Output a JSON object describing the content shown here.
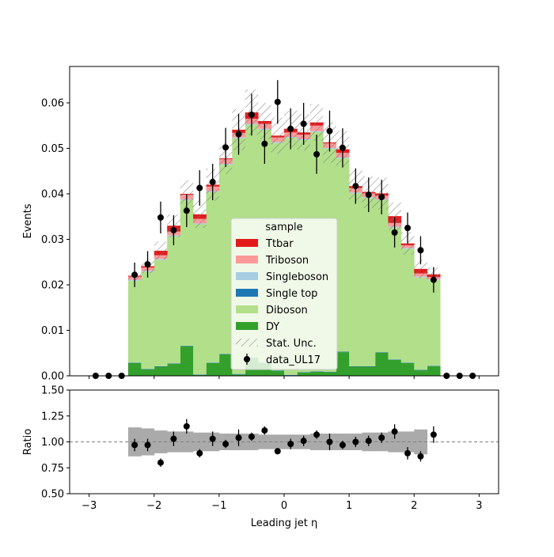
{
  "chart_data": [
    {
      "type": "bar",
      "stacked": true,
      "ylabel": "Events",
      "ylim": [
        0,
        0.068
      ],
      "xlim": [
        -3.3,
        3.3
      ],
      "y_ticks": [
        0.0,
        0.01,
        0.02,
        0.03,
        0.04,
        0.05,
        0.06
      ],
      "y_tick_labels": [
        "0.00",
        "0.01",
        "0.02",
        "0.03",
        "0.04",
        "0.05",
        "0.06"
      ],
      "bin_edges": [
        -3.0,
        -2.8,
        -2.6,
        -2.4,
        -2.2,
        -2.0,
        -1.8,
        -1.6,
        -1.4,
        -1.2,
        -1.0,
        -0.8,
        -0.6,
        -0.4,
        -0.2,
        0.0,
        0.2,
        0.4,
        0.6,
        0.8,
        1.0,
        1.2,
        1.4,
        1.6,
        1.8,
        2.0,
        2.2,
        2.4,
        2.6,
        2.8,
        3.0
      ],
      "series": [
        {
          "name": "DY",
          "color": "#33a02c",
          "values": [
            0,
            0,
            0,
            0.0028,
            0.0014,
            0.002,
            0.0026,
            0.0065,
            0.0002,
            0.0028,
            0.0047,
            0.0003,
            0.0039,
            0.0028,
            0.0011,
            0.0001,
            0.0007,
            0.0009,
            0.0008,
            0.0052,
            0.002,
            0.002,
            0.0051,
            0.0035,
            0.0028,
            0.0012,
            0.0021,
            0,
            0,
            0
          ]
        },
        {
          "name": "Single top",
          "color": "#1f78b4",
          "values": [
            0,
            0,
            0,
            0.0001,
            0.0001,
            0.0001,
            0.0001,
            0.0001,
            0.0001,
            0.0001,
            0.0001,
            0.0001,
            0.0001,
            0.0001,
            0.0001,
            0.0001,
            0.0001,
            0.0001,
            0.0001,
            0.0001,
            0.0001,
            0.0001,
            0.0001,
            0.0001,
            0.0001,
            0.0001,
            0.0001,
            0,
            0,
            0
          ]
        },
        {
          "name": "Diboson",
          "color": "#b2df8a",
          "values": [
            0,
            0,
            0,
            0.018,
            0.0214,
            0.0234,
            0.028,
            0.032,
            0.033,
            0.0375,
            0.0416,
            0.0518,
            0.0512,
            0.0512,
            0.05,
            0.0521,
            0.051,
            0.0526,
            0.049,
            0.0425,
            0.038,
            0.037,
            0.0334,
            0.029,
            0.025,
            0.0203,
            0.0188,
            0,
            0,
            0
          ]
        },
        {
          "name": "Singleboson",
          "color": "#a6cee3",
          "values": [
            0,
            0,
            0,
            0.0002,
            0.0002,
            0.0002,
            0.0002,
            0.0002,
            0.0002,
            0.0002,
            0.0002,
            0.0002,
            0.0002,
            0.0002,
            0.0002,
            0.0002,
            0.0002,
            0.0002,
            0.0002,
            0.0002,
            0.0002,
            0.0002,
            0.0002,
            0.0002,
            0.0002,
            0.0002,
            0.0002,
            0,
            0,
            0
          ]
        },
        {
          "name": "Triboson",
          "color": "#fb9a99",
          "values": [
            0,
            0,
            0,
            0.0007,
            0.0007,
            0.0008,
            0.0008,
            0.001,
            0.001,
            0.001,
            0.001,
            0.001,
            0.0011,
            0.0011,
            0.001,
            0.001,
            0.001,
            0.0012,
            0.001,
            0.001,
            0.001,
            0.0008,
            0.0008,
            0.0008,
            0.0006,
            0.0007,
            0.0005,
            0,
            0,
            0
          ]
        },
        {
          "name": "Ttbar",
          "color": "#e31a1c",
          "values": [
            0,
            0,
            0,
            0.0002,
            0.0003,
            0.001,
            0.0013,
            0.0002,
            0.001,
            0.0004,
            0.0002,
            0.0007,
            0.0014,
            0.0006,
            0.0004,
            0.0008,
            0.0005,
            0.0007,
            0.0002,
            0.0008,
            0.0004,
            0.0003,
            0.0005,
            0.0015,
            0.0004,
            0.001,
            0.0006,
            0,
            0,
            0
          ]
        }
      ],
      "stat_unc": [
        0,
        0,
        0,
        0.001,
        0.0015,
        0.002,
        0.0025,
        0.003,
        0.003,
        0.0035,
        0.0035,
        0.0045,
        0.005,
        0.004,
        0.004,
        0.004,
        0.004,
        0.004,
        0.0045,
        0.004,
        0.0035,
        0.0035,
        0.0035,
        0.003,
        0.0025,
        0.002,
        0.0015,
        0,
        0,
        0
      ],
      "data_series": {
        "name": "data_UL17",
        "color": "#000000",
        "x": [
          -2.9,
          -2.7,
          -2.5,
          -2.3,
          -2.1,
          -1.9,
          -1.7,
          -1.5,
          -1.3,
          -1.1,
          -0.9,
          -0.7,
          -0.5,
          -0.3,
          -0.1,
          0.1,
          0.3,
          0.5,
          0.7,
          0.9,
          1.1,
          1.3,
          1.5,
          1.7,
          1.9,
          2.1,
          2.3,
          2.5,
          2.7,
          2.9
        ],
        "y": [
          0.0,
          0.0,
          0.0,
          0.0222,
          0.0245,
          0.0348,
          0.032,
          0.0363,
          0.0413,
          0.0426,
          0.0502,
          0.0531,
          0.0574,
          0.051,
          0.0602,
          0.0543,
          0.0554,
          0.0487,
          0.0538,
          0.0501,
          0.0417,
          0.0398,
          0.0393,
          0.0315,
          0.0325,
          0.0276,
          0.0211,
          0.0,
          0.0,
          0.0
        ],
        "yerr": [
          0,
          0,
          0,
          0.0027,
          0.0029,
          0.0035,
          0.0033,
          0.0036,
          0.0039,
          0.004,
          0.0043,
          0.0045,
          0.0046,
          0.0044,
          0.0048,
          0.0045,
          0.0046,
          0.0043,
          0.0045,
          0.0043,
          0.0039,
          0.0038,
          0.0038,
          0.0033,
          0.0034,
          0.0031,
          0.0028,
          0,
          0,
          0
        ]
      },
      "legend": {
        "title": "sample",
        "position": "center",
        "entries": [
          {
            "label": "Ttbar",
            "kind": "patch",
            "color": "#e31a1c"
          },
          {
            "label": "Triboson",
            "kind": "patch",
            "color": "#fb9a99"
          },
          {
            "label": "Singleboson",
            "kind": "patch",
            "color": "#a6cee3"
          },
          {
            "label": "Single top",
            "kind": "patch",
            "color": "#1f78b4"
          },
          {
            "label": "Diboson",
            "kind": "patch",
            "color": "#b2df8a"
          },
          {
            "label": "DY",
            "kind": "patch",
            "color": "#33a02c"
          },
          {
            "label": "Stat. Unc.",
            "kind": "hatch",
            "color": "#777777"
          },
          {
            "label": "data_UL17",
            "kind": "errorbar",
            "color": "#000000"
          }
        ]
      }
    },
    {
      "type": "scatter",
      "xlabel": "Leading jet  η",
      "ylabel": "Ratio",
      "ylim": [
        0.5,
        1.5
      ],
      "xlim": [
        -3.3,
        3.3
      ],
      "y_ticks": [
        0.5,
        0.75,
        1.0,
        1.25,
        1.5
      ],
      "y_tick_labels": [
        "0.50",
        "0.75",
        "1.00",
        "1.25",
        "1.50"
      ],
      "x_ticks": [
        -3,
        -2,
        -1,
        0,
        1,
        2,
        3
      ],
      "x_tick_labels": [
        "−3",
        "−2",
        "−1",
        "0",
        "1",
        "2",
        "3"
      ],
      "reference_line": 1.0,
      "unc_band": {
        "color": "#aaaaaa",
        "bin_edges": [
          -2.4,
          -2.2,
          -2.0,
          -1.8,
          -1.6,
          -1.4,
          -1.2,
          -1.0,
          -0.8,
          -0.6,
          -0.4,
          -0.2,
          0.0,
          0.2,
          0.4,
          0.6,
          0.8,
          1.0,
          1.2,
          1.4,
          1.6,
          1.8,
          2.0,
          2.2
        ],
        "low": [
          0.86,
          0.87,
          0.89,
          0.9,
          0.9,
          0.91,
          0.91,
          0.92,
          0.92,
          0.92,
          0.93,
          0.93,
          0.93,
          0.93,
          0.92,
          0.92,
          0.92,
          0.92,
          0.91,
          0.91,
          0.9,
          0.9,
          0.88
        ],
        "high": [
          1.14,
          1.13,
          1.11,
          1.1,
          1.1,
          1.09,
          1.09,
          1.08,
          1.08,
          1.08,
          1.07,
          1.07,
          1.07,
          1.07,
          1.08,
          1.08,
          1.08,
          1.08,
          1.09,
          1.09,
          1.1,
          1.1,
          1.12
        ]
      },
      "series": [
        {
          "name": "data_UL17",
          "color": "#000000",
          "x": [
            -2.3,
            -2.1,
            -1.9,
            -1.7,
            -1.5,
            -1.3,
            -1.1,
            -0.9,
            -0.7,
            -0.5,
            -0.3,
            -0.1,
            0.1,
            0.3,
            0.5,
            0.7,
            0.9,
            1.1,
            1.3,
            1.5,
            1.7,
            1.9,
            2.1,
            2.3
          ],
          "y": [
            0.97,
            0.97,
            0.8,
            1.03,
            1.15,
            0.89,
            1.03,
            0.98,
            1.04,
            1.05,
            1.11,
            0.91,
            0.98,
            1.01,
            1.07,
            1.0,
            0.97,
            1.0,
            1.01,
            1.04,
            1.1,
            0.89,
            0.86,
            1.07
          ],
          "yerr": [
            0.06,
            0.06,
            0.04,
            0.07,
            0.07,
            0.04,
            0.07,
            0.04,
            0.08,
            0.04,
            0.04,
            0.03,
            0.05,
            0.05,
            0.04,
            0.08,
            0.04,
            0.05,
            0.05,
            0.05,
            0.07,
            0.06,
            0.05,
            0.08
          ]
        }
      ]
    }
  ]
}
